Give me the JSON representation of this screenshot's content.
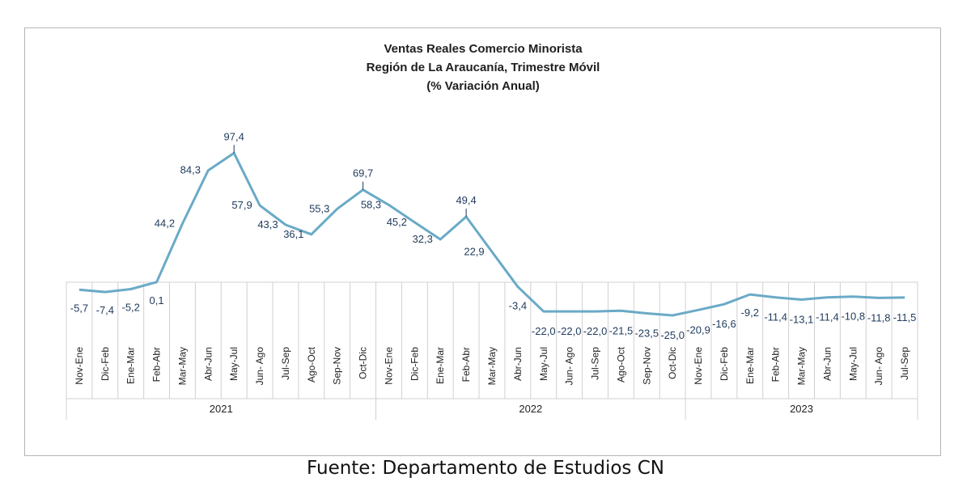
{
  "source": "Fuente: Departamento de Estudios CN",
  "chart_data": {
    "type": "line",
    "title": [
      "Ventas Reales Comercio Minorista",
      "Región de La Araucanía, Trimestre Móvil",
      "(% Variación Anual)"
    ],
    "categories": [
      "Nov-Ene",
      "Dic-Feb",
      "Ene-Mar",
      "Feb-Abr",
      "Mar-May",
      "Abr-Jun",
      "May-Jul",
      "Jun- Ago",
      "Jul-Sep",
      "Ago-Oct",
      "Sep-Nov",
      "Oct-Dic",
      "Nov-Ene",
      "Dic-Feb",
      "Ene-Mar",
      "Feb-Abr",
      "Mar-May",
      "Abr-Jun",
      "May-Jul",
      "Jun- Ago",
      "Jul-Sep",
      "Ago-Oct",
      "Sep-Nov",
      "Oct-Dic",
      "Nov-Ene",
      "Dic-Feb",
      "Ene-Mar",
      "Feb-Abr",
      "Mar-May",
      "Abr-Jun",
      "May-Jul",
      "Jun- Ago",
      "Jul-Sep"
    ],
    "years": [
      {
        "label": "2021",
        "start": 0,
        "end": 11
      },
      {
        "label": "2022",
        "start": 12,
        "end": 23
      },
      {
        "label": "2023",
        "start": 24,
        "end": 32
      }
    ],
    "series": [
      {
        "values": [
          -5.7,
          -7.4,
          -5.2,
          0.1,
          44.2,
          84.3,
          97.4,
          57.9,
          43.3,
          36.1,
          55.3,
          69.7,
          58.3,
          45.2,
          32.3,
          49.4,
          22.9,
          -3.4,
          -22.0,
          -22.0,
          -22.0,
          -21.5,
          -23.5,
          -25.0,
          -20.9,
          -16.6,
          -9.2,
          -11.4,
          -13.1,
          -11.4,
          -10.8,
          -11.8,
          -11.5
        ],
        "labels": [
          "-5,7",
          "-7,4",
          "-5,2",
          "0,1",
          "44,2",
          "84,3",
          "97,4",
          "57,9",
          "43,3",
          "36,1",
          "55,3",
          "69,7",
          "58,3",
          "45,2",
          "32,3",
          "49,4",
          "22,9",
          "-3,4",
          "-22,0",
          "-22,0",
          "-22,0",
          "-21,5",
          "-23,5",
          "-25,0",
          "-20,9",
          "-16,6",
          "-9,2",
          "-11,4",
          "-13,1",
          "-11,4",
          "-10,8",
          "-11,8",
          "-11,5"
        ],
        "color": "#6aaac6"
      }
    ],
    "ylim": [
      -30,
      110
    ],
    "grid": false,
    "legend": "none"
  }
}
